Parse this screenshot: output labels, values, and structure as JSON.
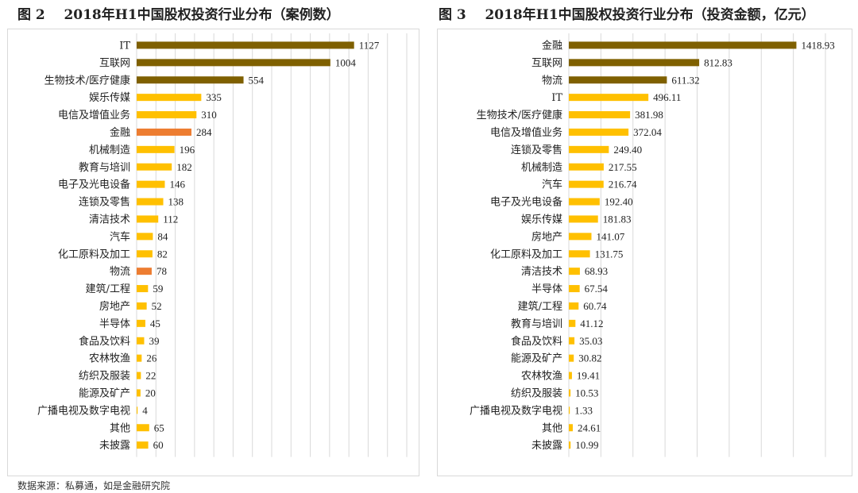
{
  "figures": [
    {
      "label": "图 2",
      "title": "2018年H1中国股权投资行业分布（案例数）"
    },
    {
      "label": "图 3",
      "title": "2018年H1中国股权投资行业分布（投资金额，亿元）"
    }
  ],
  "source": "数据来源：私募通，如是金融研究院",
  "colors": {
    "dark": "#7f6000",
    "main": "#ffc000",
    "highlight": "#ed7d31",
    "grid": "#d9d9d9"
  },
  "chart_data": [
    {
      "type": "bar",
      "orientation": "horizontal",
      "title": "2018年H1中国股权投资行业分布（案例数）",
      "categories": [
        "IT",
        "互联网",
        "生物技术/医疗健康",
        "娱乐传媒",
        "电信及增值业务",
        "金融",
        "机械制造",
        "教育与培训",
        "电子及光电设备",
        "连锁及零售",
        "清洁技术",
        "汽车",
        "化工原料及加工",
        "物流",
        "建筑/工程",
        "房地产",
        "半导体",
        "食品及饮料",
        "农林牧渔",
        "纺织及服装",
        "能源及矿产",
        "广播电视及数字电视",
        "其他",
        "未披露"
      ],
      "values": [
        1127,
        1004,
        554,
        335,
        310,
        284,
        196,
        182,
        146,
        138,
        112,
        84,
        82,
        78,
        59,
        52,
        45,
        39,
        26,
        22,
        20,
        4,
        65,
        60
      ],
      "labels": [
        "1127",
        "1004",
        "554",
        "335",
        "310",
        "284",
        "196",
        "182",
        "146",
        "138",
        "112",
        "84",
        "82",
        "78",
        "59",
        "52",
        "45",
        "39",
        "26",
        "22",
        "20",
        "4",
        "65",
        "60"
      ],
      "bar_colors": [
        "dark",
        "dark",
        "dark",
        "main",
        "main",
        "highlight",
        "main",
        "main",
        "main",
        "main",
        "main",
        "main",
        "main",
        "highlight",
        "main",
        "main",
        "main",
        "main",
        "main",
        "main",
        "main",
        "main",
        "main",
        "main"
      ],
      "xlim": [
        0,
        1400
      ],
      "grid_step": 100,
      "grid": true,
      "tick_labels_shown": false
    },
    {
      "type": "bar",
      "orientation": "horizontal",
      "title": "2018年H1中国股权投资行业分布（投资金额，亿元）",
      "categories": [
        "金融",
        "互联网",
        "物流",
        "IT",
        "生物技术/医疗健康",
        "电信及增值业务",
        "连锁及零售",
        "机械制造",
        "汽车",
        "电子及光电设备",
        "娱乐传媒",
        "房地产",
        "化工原料及加工",
        "清洁技术",
        "半导体",
        "建筑/工程",
        "教育与培训",
        "食品及饮料",
        "能源及矿产",
        "农林牧渔",
        "纺织及服装",
        "广播电视及数字电视",
        "其他",
        "未披露"
      ],
      "values": [
        1418.93,
        812.83,
        611.32,
        496.11,
        381.98,
        372.04,
        249.4,
        217.55,
        216.74,
        192.4,
        181.83,
        141.07,
        131.75,
        68.93,
        67.54,
        60.74,
        41.12,
        35.03,
        30.82,
        19.41,
        10.53,
        1.33,
        24.61,
        10.99
      ],
      "labels": [
        "1418.93",
        "812.83",
        "611.32",
        "496.11",
        "381.98",
        "372.04",
        "249.40",
        "217.55",
        "216.74",
        "192.40",
        "181.83",
        "141.07",
        "131.75",
        "68.93",
        "67.54",
        "60.74",
        "41.12",
        "35.03",
        "30.82",
        "19.41",
        "10.53",
        "1.33",
        "24.61",
        "10.99"
      ],
      "bar_colors": [
        "dark",
        "dark",
        "dark",
        "main",
        "main",
        "main",
        "main",
        "main",
        "main",
        "main",
        "main",
        "main",
        "main",
        "main",
        "main",
        "main",
        "main",
        "main",
        "main",
        "main",
        "main",
        "main",
        "main",
        "main"
      ],
      "xlim": [
        0,
        1600
      ],
      "grid_step": 200,
      "grid": true,
      "tick_labels_shown": false
    }
  ]
}
